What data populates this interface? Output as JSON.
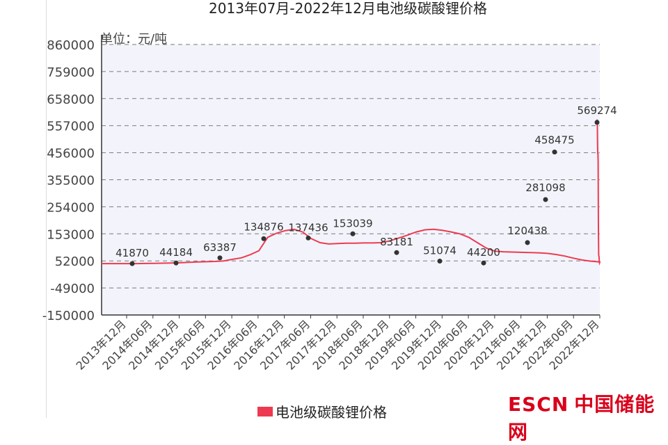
{
  "chart_data": {
    "type": "line",
    "title": "2013年07月-2022年12月电池级碳酸锂价格",
    "unit_label": "单位：元/吨",
    "yticks": [
      "860000",
      "759000",
      "658000",
      "557000",
      "456000",
      "355000",
      "254000",
      "153000",
      "52000",
      "-49000",
      "-150000"
    ],
    "ytick_values": [
      860000,
      759000,
      658000,
      557000,
      456000,
      355000,
      254000,
      153000,
      52000,
      -49000,
      -150000
    ],
    "ylim": [
      -150000,
      860000
    ],
    "xticks": [
      "2013年12月",
      "2014年06月",
      "2014年12月",
      "2015年06月",
      "2015年12月",
      "2016年06月",
      "2016年12月",
      "2017年06月",
      "2017年12月",
      "2018年06月",
      "2018年12月",
      "2019年06月",
      "2019年12月",
      "2020年06月",
      "2020年12月",
      "2021年06月",
      "2021年12月",
      "2022年06月",
      "2022年12月"
    ],
    "grid": true,
    "legend_position": "bottom",
    "color": "#ee3a50",
    "series": [
      {
        "name": "电池级碳酸锂价格",
        "x": [
          0,
          1,
          2,
          3,
          4,
          5,
          6,
          7,
          8,
          9,
          10,
          11,
          12,
          13,
          14,
          15,
          16,
          17,
          18,
          19,
          20,
          21,
          22,
          23,
          24,
          25,
          26,
          27,
          28,
          29,
          30,
          31,
          32,
          33,
          34,
          35,
          36,
          37,
          38,
          39,
          40,
          41,
          42,
          43,
          44,
          45,
          46,
          47,
          48,
          49,
          50,
          51,
          52,
          53,
          54,
          55,
          56,
          57
        ],
        "values": [
          41870,
          41870,
          41870,
          41870,
          42000,
          42500,
          43000,
          43500,
          44184,
          45000,
          46500,
          48000,
          49000,
          50000,
          52000,
          58000,
          63387,
          75000,
          90000,
          140000,
          155000,
          165000,
          170000,
          160000,
          134876,
          120000,
          115000,
          117000,
          118000,
          118000,
          119000,
          119000,
          120000,
          127000,
          137436,
          148000,
          160000,
          168000,
          170000,
          166000,
          160000,
          153039,
          140000,
          120000,
          100000,
          88000,
          86000,
          85000,
          84000,
          83181,
          82000,
          80000,
          76000,
          70000,
          62000,
          55000,
          51074,
          48000
        ]
      }
    ],
    "labeled_points": [
      {
        "x": "2013年12月",
        "value": 41870,
        "label": "41870"
      },
      {
        "x": "2014年12月",
        "value": 44184,
        "label": "44184"
      },
      {
        "x": "2015年12月",
        "value": 63387,
        "label": "63387"
      },
      {
        "x": "2016年06月",
        "value": 134876,
        "label": "134876"
      },
      {
        "x": "2017年06月",
        "value": 137436,
        "label": "137436"
      },
      {
        "x": "2018年06月",
        "value": 153039,
        "label": "153039"
      },
      {
        "x": "2018年12月",
        "value": 83181,
        "label": "83181"
      },
      {
        "x": "2019年12月",
        "value": 51074,
        "label": "51074"
      },
      {
        "x": "2020年12月",
        "value": 44200,
        "label": "44200"
      },
      {
        "x": "2021年06月",
        "value": 120438,
        "label": "120438"
      },
      {
        "x": "2021年12月",
        "value": 281098,
        "label": "281098"
      },
      {
        "x": "2022年06月",
        "value": 458475,
        "label": "458475"
      },
      {
        "x": "2022年12月",
        "value": 569274,
        "label": "569274"
      }
    ]
  },
  "legend": {
    "label": "电池级碳酸锂价格"
  },
  "watermark": {
    "latin": "ESCN",
    "cn": "中国储能网"
  }
}
